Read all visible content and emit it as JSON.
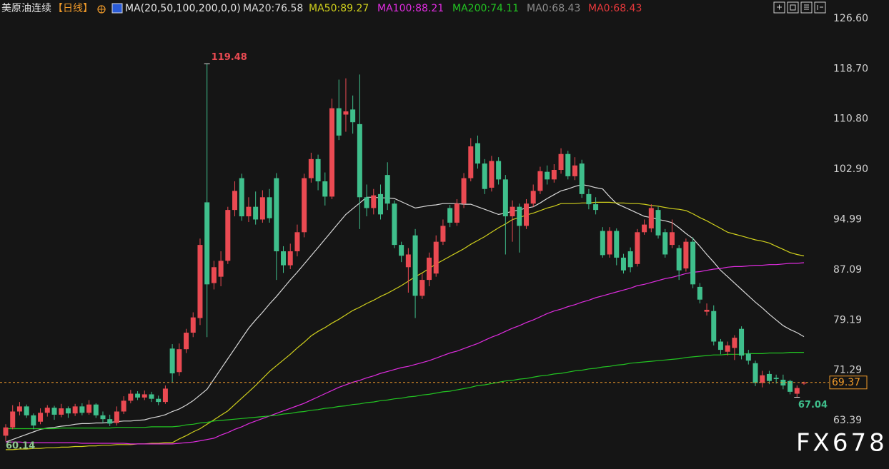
{
  "header": {
    "symbol": "美原油连续",
    "period": "【日线】",
    "ma_params": "MA(20,50,100,200,0,0)",
    "extra": [
      {
        "label": "MA0:68.43",
        "color": "#8c8c8c"
      },
      {
        "label": "MA0:68.43",
        "color": "#e5383b"
      }
    ]
  },
  "watermark": "FX678",
  "chart_data": {
    "type": "candlestick",
    "grid": false,
    "up_color": "#ea4a52",
    "down_color": "#3fbf8c",
    "last_price_color": "#f09a2a",
    "ylim": [
      55.76,
      129.52
    ],
    "yticks": [
      63.39,
      71.29,
      79.19,
      87.09,
      94.99,
      {
        "value": 102.9,
        "label": "102.90"
      },
      {
        "value": 110.8,
        "label": "110.80"
      },
      {
        "value": 118.7,
        "label": "118.70"
      },
      {
        "value": 126.6,
        "label": "126.60"
      }
    ],
    "candles": {
      "open": [
        61.0,
        62.3,
        64.8,
        65.6,
        64.2,
        63.2,
        64.6,
        65.4,
        64.3,
        65.3,
        64.5,
        65.6,
        64.6,
        65.9,
        64.2,
        63.6,
        63.0,
        64.8,
        66.5,
        67.6,
        67.0,
        67.5,
        66.8,
        66.3,
        74.7,
        71.0,
        74.6,
        77.2,
        79.5,
        97.7,
        85.0,
        86.0,
        88.5,
        96.5,
        101.5,
        95.5,
        97.0,
        95.0,
        98.5,
        101.5,
        90.0,
        87.8,
        90.0,
        93.0,
        101.5,
        104.5,
        101.0,
        98.6,
        112.5,
        111.5,
        112.3,
        110.0,
        98.5,
        96.8,
        99.0,
        102.0,
        97.5,
        91.0,
        87.5,
        92.5,
        83.0,
        85.5,
        86.5,
        91.5,
        96.8,
        94.5,
        97.5,
        101.5,
        107.0,
        103.8,
        100.0,
        104.2,
        101.3,
        95.5,
        97.0,
        94.0,
        97.5,
        99.5,
        102.5,
        101.3,
        102.8,
        105.3,
        101.8,
        103.8,
        99.0,
        97.4,
        93.2,
        89.5,
        93.2,
        89.0,
        90.0,
        88.0,
        93.0,
        93.6,
        96.5,
        93.0,
        91.0,
        90.5,
        87.3,
        91.5,
        84.4,
        80.5,
        80.6,
        75.8,
        74.2,
        74.8,
        77.8,
        73.9,
        72.4,
        69.3,
        70.7,
        70.1,
        69.8,
        69.6,
        67.6,
        69.2
      ],
      "high": [
        62.8,
        65.8,
        66.3,
        65.9,
        64.5,
        65.3,
        65.8,
        65.7,
        66.0,
        65.6,
        66.0,
        66.1,
        66.6,
        66.1,
        64.8,
        64.3,
        65.6,
        67.2,
        68.2,
        68.0,
        68.1,
        67.9,
        67.3,
        68.9,
        75.4,
        75.5,
        77.8,
        80.4,
        92.0,
        119.48,
        88.5,
        90.0,
        97.0,
        101.0,
        102.2,
        98.5,
        99.4,
        99.6,
        99.8,
        102.3,
        90.8,
        91.2,
        94.2,
        102.2,
        105.5,
        105.2,
        102.4,
        114.0,
        117.0,
        117.2,
        114.5,
        117.8,
        100.5,
        99.8,
        100.5,
        104.0,
        98.0,
        91.5,
        90.5,
        93.5,
        86.5,
        89.8,
        92.5,
        95.0,
        97.3,
        98.2,
        102.3,
        107.8,
        108.2,
        104.5,
        105.0,
        104.8,
        102.0,
        98.0,
        97.5,
        98.2,
        100.5,
        103.3,
        103.5,
        103.7,
        106.2,
        105.8,
        104.8,
        104.4,
        99.8,
        98.5,
        93.8,
        93.8,
        93.6,
        89.6,
        90.6,
        93.5,
        95.0,
        97.4,
        97.0,
        93.5,
        95.0,
        91.0,
        92.0,
        92.2,
        85.0,
        81.8,
        81.5,
        76.2,
        75.8,
        76.8,
        78.2,
        74.5,
        72.8,
        71.2,
        71.2,
        70.6,
        70.6,
        69.8,
        68.9,
        69.5
      ],
      "low": [
        60.14,
        62.0,
        64.2,
        63.8,
        62.0,
        62.8,
        64.0,
        63.5,
        63.9,
        63.8,
        64.1,
        64.2,
        64.3,
        63.8,
        63.0,
        62.5,
        62.6,
        64.4,
        66.1,
        66.6,
        66.6,
        66.3,
        65.8,
        66.0,
        69.4,
        70.4,
        74.0,
        76.5,
        78.4,
        76.5,
        84.0,
        84.5,
        88.0,
        95.5,
        94.8,
        94.6,
        94.2,
        94.5,
        94.5,
        85.5,
        86.6,
        87.2,
        89.2,
        92.2,
        100.8,
        99.6,
        97.2,
        98.2,
        107.5,
        108.8,
        108.5,
        93.5,
        95.5,
        95.8,
        95.0,
        96.5,
        90.5,
        88.3,
        83.5,
        79.5,
        82.5,
        84.5,
        86.0,
        91.0,
        93.8,
        94.0,
        96.8,
        101.0,
        103.0,
        99.0,
        99.4,
        100.5,
        89.5,
        91.5,
        89.8,
        93.5,
        97.0,
        99.0,
        100.5,
        100.8,
        102.2,
        101.3,
        101.2,
        98.4,
        96.6,
        95.8,
        89.0,
        89.0,
        87.8,
        86.5,
        86.7,
        87.6,
        92.6,
        93.0,
        92.0,
        89.0,
        90.5,
        85.5,
        86.8,
        84.2,
        81.8,
        79.9,
        75.2,
        73.8,
        73.6,
        72.9,
        73.0,
        72.2,
        68.8,
        68.6,
        69.1,
        69.2,
        68.3,
        67.5,
        67.04,
        69.0
      ],
      "close": [
        62.3,
        64.8,
        65.6,
        64.2,
        62.6,
        64.6,
        65.4,
        64.3,
        65.3,
        64.5,
        65.6,
        64.6,
        65.9,
        64.2,
        63.6,
        62.9,
        64.8,
        66.5,
        67.6,
        67.0,
        67.5,
        66.8,
        66.3,
        68.4,
        70.8,
        74.6,
        77.2,
        79.6,
        91.0,
        84.8,
        87.5,
        88.5,
        96.5,
        99.5,
        95.5,
        97.0,
        95.0,
        98.5,
        95.2,
        90.0,
        87.8,
        90.0,
        93.0,
        101.5,
        104.5,
        101.0,
        98.6,
        112.5,
        108.2,
        112.0,
        110.3,
        98.5,
        96.8,
        98.8,
        95.8,
        97.5,
        91.0,
        89.3,
        89.5,
        83.0,
        85.5,
        89.0,
        91.5,
        94.0,
        94.5,
        97.5,
        101.5,
        106.5,
        103.8,
        99.8,
        104.2,
        101.3,
        95.5,
        97.0,
        94.0,
        97.5,
        99.5,
        102.6,
        101.3,
        102.8,
        105.3,
        101.8,
        103.5,
        99.0,
        97.4,
        96.5,
        89.4,
        93.2,
        89.0,
        87.0,
        87.5,
        93.0,
        94.2,
        96.8,
        92.5,
        89.5,
        93.0,
        87.0,
        91.5,
        84.8,
        82.4,
        80.8,
        75.8,
        74.5,
        75.2,
        76.4,
        73.6,
        72.8,
        69.3,
        70.5,
        69.6,
        69.9,
        68.9,
        67.9,
        68.5,
        69.37
      ]
    },
    "series": [
      {
        "name": "MA20:76.58",
        "color": "#d8d8d8",
        "values": [
          60.0,
          60.4,
          60.8,
          61.2,
          61.6,
          62.0,
          62.2,
          62.3,
          62.5,
          62.6,
          62.8,
          62.9,
          62.9,
          63.0,
          63.0,
          63.1,
          63.2,
          63.3,
          63.3,
          63.4,
          63.5,
          63.8,
          64.0,
          64.3,
          64.8,
          65.2,
          65.8,
          66.5,
          67.4,
          68.3,
          69.9,
          71.5,
          73.1,
          74.7,
          76.3,
          77.9,
          79.2,
          80.4,
          81.7,
          82.9,
          84.2,
          85.5,
          86.7,
          88.0,
          89.3,
          90.6,
          91.9,
          93.2,
          94.5,
          95.8,
          96.7,
          97.6,
          98.5,
          98.5,
          98.4,
          98.4,
          98.3,
          97.8,
          97.3,
          96.8,
          97.0,
          97.2,
          97.3,
          97.5,
          97.5,
          97.5,
          97.4,
          97.4,
          97.0,
          96.6,
          96.2,
          95.8,
          96.0,
          96.3,
          96.5,
          96.8,
          97.0,
          97.6,
          98.3,
          98.9,
          99.5,
          99.8,
          100.2,
          100.5,
          100.3,
          100.0,
          99.8,
          98.6,
          97.5,
          97.0,
          96.5,
          96.0,
          95.5,
          95.3,
          95.0,
          94.8,
          94.5,
          93.7,
          92.8,
          92.0,
          90.8,
          89.5,
          88.3,
          87.0,
          86.0,
          85.0,
          84.0,
          83.0,
          82.0,
          81.1,
          80.1,
          79.2,
          78.3,
          77.7,
          77.2,
          76.58
        ]
      },
      {
        "name": "MA50:89.27",
        "color": "#cfcf1c",
        "values": [
          58.8,
          58.8,
          58.9,
          58.9,
          59.0,
          59.0,
          59.1,
          59.1,
          59.2,
          59.2,
          59.3,
          59.3,
          59.4,
          59.4,
          59.5,
          59.5,
          59.6,
          59.6,
          59.6,
          59.7,
          59.7,
          59.8,
          59.8,
          59.9,
          59.9,
          60.5,
          61.0,
          61.6,
          62.1,
          62.8,
          63.5,
          64.2,
          64.9,
          65.9,
          66.9,
          67.9,
          68.9,
          70.0,
          71.1,
          72.0,
          72.9,
          73.8,
          74.8,
          75.7,
          76.7,
          77.4,
          78.0,
          78.7,
          79.3,
          80.0,
          80.7,
          81.2,
          81.8,
          82.3,
          82.9,
          83.4,
          84.0,
          84.6,
          85.3,
          86.0,
          86.6,
          87.3,
          88.0,
          88.6,
          89.2,
          89.8,
          90.4,
          91.1,
          91.7,
          92.3,
          93.0,
          93.7,
          94.3,
          95.0,
          95.3,
          95.7,
          96.0,
          96.4,
          96.8,
          97.1,
          97.5,
          97.5,
          97.5,
          97.6,
          97.6,
          97.7,
          97.7,
          97.7,
          97.6,
          97.6,
          97.5,
          97.5,
          97.4,
          97.2,
          97.1,
          96.9,
          96.7,
          96.6,
          96.4,
          95.9,
          95.3,
          94.8,
          94.2,
          93.6,
          93.0,
          92.7,
          92.4,
          92.1,
          91.8,
          91.6,
          91.3,
          90.8,
          90.3,
          89.8,
          89.5,
          89.27
        ]
      },
      {
        "name": "MA100:88.21",
        "color": "#e02ce0",
        "values": [
          60.0,
          60.0,
          60.0,
          59.9,
          59.9,
          59.9,
          59.9,
          59.9,
          59.9,
          59.9,
          59.9,
          59.8,
          59.8,
          59.8,
          59.8,
          59.8,
          59.8,
          59.8,
          59.7,
          59.7,
          59.7,
          59.7,
          59.7,
          59.7,
          59.7,
          59.8,
          59.9,
          60.0,
          60.2,
          60.4,
          60.6,
          61.1,
          61.5,
          62.0,
          62.4,
          62.9,
          63.3,
          63.7,
          64.1,
          64.5,
          64.9,
          65.3,
          65.7,
          66.1,
          66.6,
          67.1,
          67.6,
          68.1,
          68.6,
          69.0,
          69.4,
          69.7,
          70.1,
          70.4,
          70.8,
          71.1,
          71.4,
          71.7,
          71.9,
          72.2,
          72.5,
          72.8,
          73.2,
          73.6,
          74.0,
          74.3,
          74.7,
          75.1,
          75.5,
          76.0,
          76.5,
          76.9,
          77.4,
          77.9,
          78.3,
          78.8,
          79.2,
          79.7,
          80.2,
          80.6,
          80.9,
          81.3,
          81.6,
          82.0,
          82.3,
          82.7,
          83.0,
          83.3,
          83.6,
          83.9,
          84.2,
          84.6,
          84.8,
          85.1,
          85.4,
          85.7,
          85.9,
          86.2,
          86.5,
          86.7,
          86.8,
          87.0,
          87.2,
          87.3,
          87.5,
          87.6,
          87.6,
          87.7,
          87.8,
          87.8,
          87.9,
          87.9,
          88.0,
          88.1,
          88.1,
          88.21
        ]
      },
      {
        "name": "MA200:74.11",
        "color": "#22c422",
        "values": [
          62.1,
          62.1,
          62.1,
          62.1,
          62.1,
          62.1,
          62.1,
          62.1,
          62.2,
          62.2,
          62.2,
          62.2,
          62.2,
          62.2,
          62.2,
          62.2,
          62.3,
          62.3,
          62.3,
          62.3,
          62.3,
          62.4,
          62.4,
          62.4,
          62.4,
          62.5,
          62.7,
          62.8,
          63.0,
          63.1,
          63.3,
          63.4,
          63.5,
          63.6,
          63.7,
          63.8,
          63.9,
          64.0,
          64.1,
          64.2,
          64.4,
          64.5,
          64.7,
          64.8,
          65.0,
          65.1,
          65.3,
          65.4,
          65.6,
          65.7,
          65.9,
          66.0,
          66.2,
          66.3,
          66.5,
          66.6,
          66.8,
          66.9,
          67.1,
          67.2,
          67.4,
          67.5,
          67.7,
          67.9,
          68.0,
          68.2,
          68.4,
          68.6,
          68.9,
          69.0,
          69.2,
          69.4,
          69.6,
          69.7,
          69.9,
          70.0,
          70.2,
          70.4,
          70.5,
          70.7,
          70.8,
          71.0,
          71.2,
          71.3,
          71.5,
          71.6,
          71.8,
          71.9,
          72.1,
          72.2,
          72.4,
          72.5,
          72.6,
          72.7,
          72.8,
          72.9,
          73.0,
          73.1,
          73.3,
          73.4,
          73.5,
          73.6,
          73.7,
          73.7,
          73.8,
          73.8,
          73.8,
          73.9,
          73.9,
          73.9,
          74.0,
          74.0,
          74.0,
          74.1,
          74.1,
          74.11
        ]
      }
    ]
  }
}
